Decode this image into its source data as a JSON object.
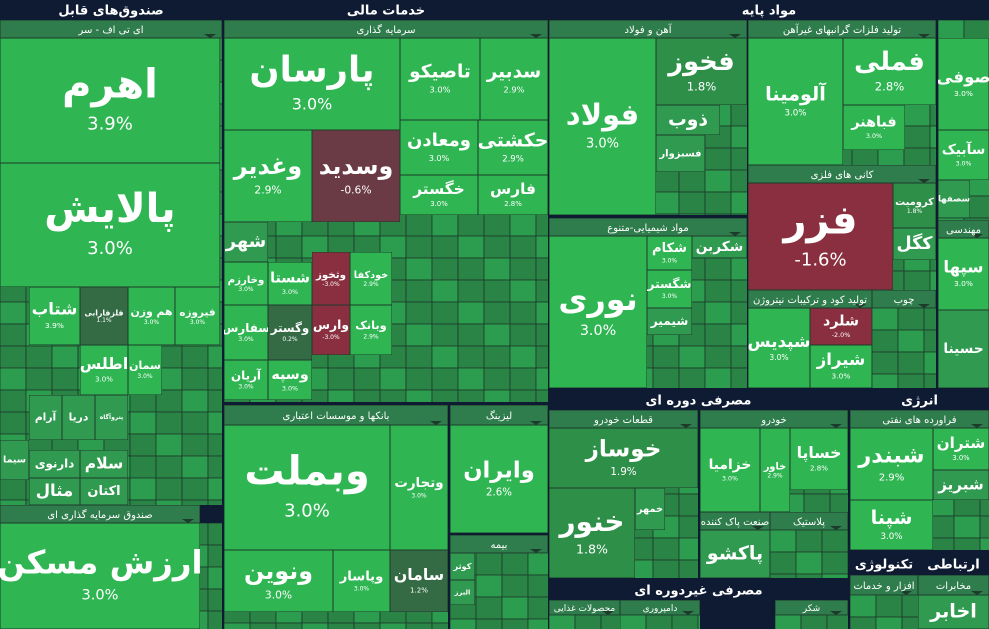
{
  "chart_data": {
    "type": "treemap",
    "sectors": [
      {
        "title": "صندوق‌های قابل",
        "subsectors": [
          {
            "title": "ای تی اف - سر",
            "tiles": [
              {
                "name": "اهرم",
                "value": 3.9,
                "value_label": "3.9%"
              },
              {
                "name": "پالایش",
                "value": 3.0,
                "value_label": "3.0%"
              },
              {
                "name": "شتاب",
                "value": 3.9,
                "value_label": "3.9%"
              },
              {
                "name": "فلزفارابی",
                "value": 1.1,
                "value_label": "1.1%"
              },
              {
                "name": "هم وزن",
                "value": 3.0,
                "value_label": "3.0%"
              },
              {
                "name": "فیروزه",
                "value": 3.0,
                "value_label": "3.0%"
              },
              {
                "name": "اطلس",
                "value": 3.0,
                "value_label": "3.0%"
              },
              {
                "name": "سمان",
                "value": 3.0,
                "value_label": "3.0%"
              },
              {
                "name": "آرام"
              },
              {
                "name": "دریا"
              },
              {
                "name": "پتروآگاه"
              },
              {
                "name": "سیما"
              },
              {
                "name": "دارنوی"
              },
              {
                "name": "سلام"
              },
              {
                "name": "مثال"
              },
              {
                "name": "اکتان"
              }
            ]
          },
          {
            "title": "صندوق سرمایه گذاری ای",
            "tiles": [
              {
                "name": "ارزش مسکن",
                "value": 3.0,
                "value_label": "3.0%"
              }
            ]
          }
        ]
      },
      {
        "title": "خدمات مالی",
        "subsectors": [
          {
            "title": "سرمایه گذاری",
            "tiles": [
              {
                "name": "پارسان",
                "value": 3.0,
                "value_label": "3.0%"
              },
              {
                "name": "تاصیکو",
                "value": 3.0,
                "value_label": "3.0%"
              },
              {
                "name": "سدبیر",
                "value": 2.9,
                "value_label": "2.9%"
              },
              {
                "name": "وغدیر",
                "value": 2.9,
                "value_label": "2.9%"
              },
              {
                "name": "وسدید",
                "value": -0.6,
                "value_label": "-0.6%"
              },
              {
                "name": "ومعادن",
                "value": 3.0,
                "value_label": "3.0%"
              },
              {
                "name": "حکشتی",
                "value": 2.9,
                "value_label": "2.9%"
              },
              {
                "name": "خگستر",
                "value": 3.0,
                "value_label": "3.0%"
              },
              {
                "name": "فارس",
                "value": 2.8,
                "value_label": "2.8%"
              },
              {
                "name": "شهر"
              },
              {
                "name": "وخارزم",
                "value": 3.0,
                "value_label": "3.0%"
              },
              {
                "name": "شستا",
                "value": 3.0,
                "value_label": "3.0%"
              },
              {
                "name": "وثخوز",
                "value": -3.0,
                "value_label": "-3.0%"
              },
              {
                "name": "خودکفا",
                "value": 2.9,
                "value_label": "2.9%"
              },
              {
                "name": "سفارس",
                "value": 3.0,
                "value_label": "3.0%"
              },
              {
                "name": "وگستر",
                "value": 0.2,
                "value_label": "0.2%"
              },
              {
                "name": "وارس",
                "value": -3.0,
                "value_label": "-3.0%"
              },
              {
                "name": "وبانک",
                "value": 2.9,
                "value_label": "2.9%"
              },
              {
                "name": "آریان",
                "value": 3.0,
                "value_label": "3.0%"
              },
              {
                "name": "وسپه",
                "value": 3.0,
                "value_label": "3.0%"
              }
            ]
          },
          {
            "title": "بانکها و موسسات اعتباری",
            "tiles": [
              {
                "name": "وبملت",
                "value": 3.0,
                "value_label": "3.0%"
              },
              {
                "name": "وتجارت",
                "value": 3.0,
                "value_label": "3.0%"
              },
              {
                "name": "ونوین",
                "value": 3.0,
                "value_label": "3.0%"
              },
              {
                "name": "وپاسار",
                "value": 3.0,
                "value_label": "3.0%"
              },
              {
                "name": "سامان",
                "value": 1.2,
                "value_label": "1.2%"
              }
            ]
          },
          {
            "title": "لیزینگ",
            "tiles": [
              {
                "name": "وایران",
                "value": 2.6,
                "value_label": "2.6%"
              }
            ]
          },
          {
            "title": "بیمه",
            "tiles": [
              {
                "name": "کوثر"
              },
              {
                "name": "البرز"
              }
            ]
          }
        ]
      },
      {
        "title": "مواد پایه",
        "subsectors": [
          {
            "title": "آهن و فولاد",
            "tiles": [
              {
                "name": "فولاد",
                "value": 3.0,
                "value_label": "3.0%"
              },
              {
                "name": "فخوز",
                "value": 1.8,
                "value_label": "1.8%"
              },
              {
                "name": "ذوب"
              },
              {
                "name": "فسبزوار"
              }
            ]
          },
          {
            "title": "تولید فلزات گرانبهای غیرآهن",
            "tiles": [
              {
                "name": "آلومینا",
                "value": 3.0,
                "value_label": "3.0%"
              },
              {
                "name": "فملی",
                "value": 2.8,
                "value_label": "2.8%"
              },
              {
                "name": "فباهنر",
                "value": 3.0,
                "value_label": "3.0%"
              }
            ]
          },
          {
            "title": "کانی های فلزی",
            "tiles": [
              {
                "name": "فزر",
                "value": -1.6,
                "value_label": "-1.6%"
              },
              {
                "name": "کرومیت",
                "value": 1.8,
                "value_label": "1.8%"
              },
              {
                "name": "کگل"
              }
            ]
          },
          {
            "title": "مواد شیمیایی-متنوع",
            "tiles": [
              {
                "name": "نوری",
                "value": 3.0,
                "value_label": "3.0%"
              },
              {
                "name": "شکام",
                "value": 3.0,
                "value_label": "3.0%"
              },
              {
                "name": "شگستر",
                "value": 3.0,
                "value_label": "3.0%"
              },
              {
                "name": "شکربن"
              },
              {
                "name": "شیمیر"
              }
            ]
          },
          {
            "title": "تولید کود و ترکیبات نیتروژن",
            "tiles": [
              {
                "name": "شپدیس",
                "value": 3.0,
                "value_label": "3.0%"
              },
              {
                "name": "شلرد",
                "value": -2.0,
                "value_label": "-2.0%"
              },
              {
                "name": "شیراز",
                "value": 3.0,
                "value_label": "3.0%"
              }
            ]
          },
          {
            "title": "چوب",
            "tiles": []
          },
          {
            "tiles": [
              {
                "name": "صوفی",
                "value": 3.0,
                "value_label": "3.0%"
              },
              {
                "name": "سآبیک",
                "value": 3.0,
                "value_label": "3.0%"
              },
              {
                "name": "سصفها"
              }
            ]
          },
          {
            "title": "مهندسی",
            "tiles": [
              {
                "name": "سپها",
                "value": 3.0,
                "value_label": "3.0%"
              },
              {
                "name": "حسینا"
              }
            ]
          }
        ]
      },
      {
        "title": "مصرفی دوره ای",
        "subsectors": [
          {
            "title": "قطعات خودرو",
            "tiles": [
              {
                "name": "خوساز",
                "value": 1.9,
                "value_label": "1.9%"
              },
              {
                "name": "خنور",
                "value": 1.8,
                "value_label": "1.8%"
              },
              {
                "name": "خمهر"
              }
            ]
          },
          {
            "title": "خودرو",
            "tiles": [
              {
                "name": "خزامیا",
                "value": 3.0,
                "value_label": "3.0%"
              },
              {
                "name": "خاور",
                "value": 2.9,
                "value_label": "2.9%"
              },
              {
                "name": "خساپا",
                "value": 2.8,
                "value_label": "2.8%"
              }
            ]
          },
          {
            "title": "صنعت پاک کننده",
            "tiles": [
              {
                "name": "پاکشو"
              }
            ]
          },
          {
            "title": "پلاستیک",
            "tiles": []
          }
        ]
      },
      {
        "title": "مصرفی غیردوره ای",
        "subsectors": [
          {
            "title": "محصولات غذایی",
            "tiles": []
          },
          {
            "title": "دامپروری",
            "tiles": []
          },
          {
            "title": "شکر",
            "tiles": []
          }
        ]
      },
      {
        "title": "انرژی",
        "subsectors": [
          {
            "title": "فراورده های نفتی",
            "tiles": [
              {
                "name": "شبندر",
                "value": 2.9,
                "value_label": "2.9%"
              },
              {
                "name": "شتران",
                "value": 3.0,
                "value_label": "3.0%"
              },
              {
                "name": "شپنا",
                "value": 3.0,
                "value_label": "3.0%"
              },
              {
                "name": "شبریز"
              }
            ]
          }
        ]
      },
      {
        "title": "تکنولوژی",
        "subsectors": [
          {
            "title": "افزار و خدمات",
            "tiles": []
          }
        ]
      },
      {
        "title": "ارتباطی",
        "subsectors": [
          {
            "title": "مخابرات",
            "tiles": [
              {
                "name": "اخابر"
              }
            ]
          }
        ]
      }
    ]
  }
}
